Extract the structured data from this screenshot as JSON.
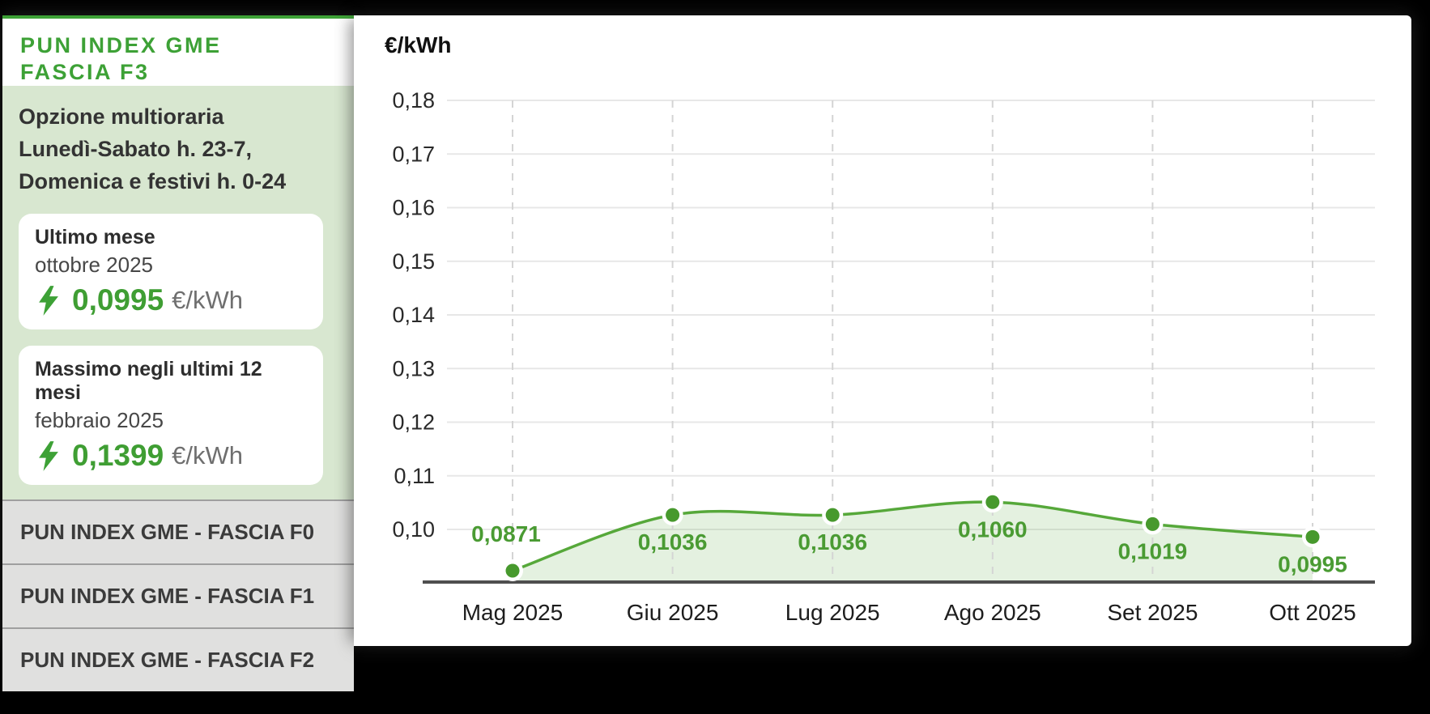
{
  "app": {
    "background_color": "#000000"
  },
  "sidebar": {
    "accent_color": "#3da136",
    "title": {
      "line1": "PUN INDEX GME",
      "line2": "FASCIA F3"
    },
    "option_note_lines": [
      "Opzione multioraria",
      "Lunedì-Sabato h. 23-7,",
      "Domenica e festivi h. 0-24"
    ],
    "stats": [
      {
        "title": "Ultimo mese",
        "period": "ottobre 2025",
        "value": "0,0995",
        "unit": "€/kWh",
        "icon": "lightning-bolt"
      },
      {
        "title": "Massimo negli ultimi 12 mesi",
        "period": "febbraio 2025",
        "value": "0,1399",
        "unit": "€/kWh",
        "icon": "lightning-bolt"
      }
    ],
    "links": [
      {
        "label": "PUN INDEX GME - FASCIA F0"
      },
      {
        "label": "PUN INDEX GME - FASCIA F1"
      },
      {
        "label": "PUN INDEX GME - FASCIA F2"
      }
    ]
  },
  "chart_data": {
    "type": "area",
    "title": "€/kWh",
    "ylabel": "€/kWh",
    "xlabel": "",
    "categories": [
      "Mag 2025",
      "Giu 2025",
      "Lug 2025",
      "Ago 2025",
      "Set 2025",
      "Ott 2025"
    ],
    "values": [
      0.0871,
      0.1036,
      0.1036,
      0.106,
      0.1019,
      0.0995
    ],
    "point_labels": [
      "0,0871",
      "0,1036",
      "0,1036",
      "0,1060",
      "0,1019",
      "0,0995"
    ],
    "point_label_positions": [
      "above",
      "below",
      "below",
      "below",
      "below",
      "below"
    ],
    "y_ticks": [
      0.18,
      0.17,
      0.16,
      0.15,
      0.14,
      0.13,
      0.12,
      0.11,
      0.1
    ],
    "y_tick_labels": [
      "0,18",
      "0,17",
      "0,16",
      "0,15",
      "0,14",
      "0,13",
      "0,12",
      "0,11",
      "0,10"
    ],
    "ylim": [
      0.09,
      0.185
    ],
    "grid": {
      "horizontal": "solid",
      "vertical": "dashed"
    },
    "legend_position": "none",
    "colors": {
      "line": "#56a83a",
      "point": "#47992d",
      "point_ring": "#ffffff",
      "area": "rgba(86,168,60,0.16)",
      "point_label": "#4a9b33",
      "tick_label": "#2a2a2a",
      "axis_line": "#4f4f4f",
      "grid_h": "#e7e7e7",
      "grid_v": "#d4d4d4"
    }
  }
}
